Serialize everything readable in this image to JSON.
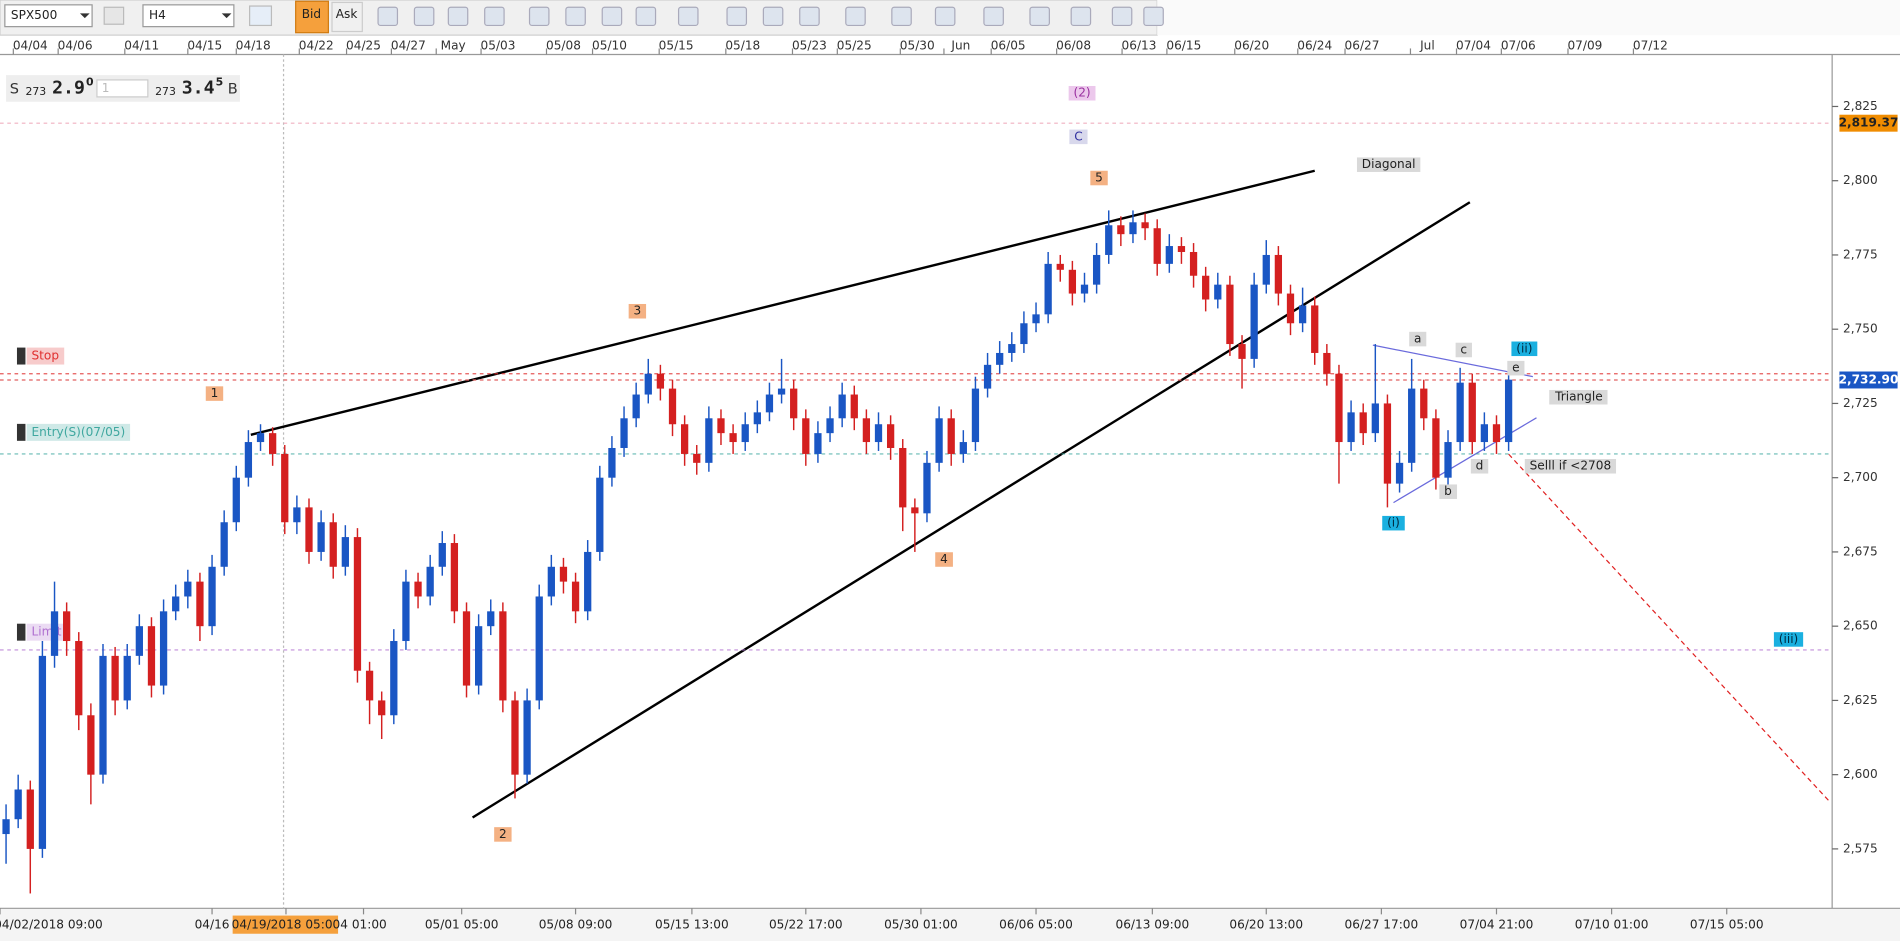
{
  "toolbar": {
    "symbol": "SPX500",
    "timeframe": "H4",
    "bid": "Bid",
    "ask": "Ask"
  },
  "quote": {
    "side_s": "S",
    "bid_big": "273",
    "bid_main": "2.9",
    "bid_sup": "0",
    "amount": "1",
    "ask_big": "273",
    "ask_main": "3.4",
    "ask_sup": "5",
    "side_b": "B"
  },
  "chart_data": {
    "type": "candlestick",
    "up_color": "#1a56c4",
    "down_color": "#d42020",
    "ylim": [
      2555,
      2842.5
    ],
    "yticks": [
      {
        "value": 2575,
        "label": "2,575"
      },
      {
        "value": 2600,
        "label": "2,600"
      },
      {
        "value": 2625,
        "label": "2,625"
      },
      {
        "value": 2650,
        "label": "2,650"
      },
      {
        "value": 2675,
        "label": "2,675"
      },
      {
        "value": 2700,
        "label": "2,700"
      },
      {
        "value": 2725,
        "label": "2,725"
      },
      {
        "value": 2750,
        "label": "2,750"
      },
      {
        "value": 2775,
        "label": "2,775"
      },
      {
        "value": 2800,
        "label": "2,800"
      },
      {
        "value": 2825,
        "label": "2,825"
      }
    ],
    "top_dates": [
      "04/04",
      "04/06",
      "04/11",
      "04/15",
      "04/18",
      "04/22",
      "04/25",
      "04/27",
      "May",
      "05/03",
      "05/08",
      "05/10",
      "05/15",
      "05/18",
      "05/23",
      "05/25",
      "05/30",
      "Jun",
      "06/05",
      "06/08",
      "06/13",
      "06/15",
      "06/20",
      "06/24",
      "06/27",
      "Jul",
      "07/04",
      "07/06",
      "07/09",
      "07/12"
    ],
    "bottom_dates": [
      "04/02/2018 09:00",
      "04/16",
      "04/19/2018 05:00",
      "4 01:00",
      "05/01 05:00",
      "05/08 09:00",
      "05/15 13:00",
      "05/22 17:00",
      "05/30 01:00",
      "06/06 05:00",
      "06/13 09:00",
      "06/20 13:00",
      "06/27 17:00",
      "07/04 21:00",
      "07/10 01:00",
      "07/15 05:00"
    ],
    "price_tags": [
      {
        "value": 2819.37,
        "label": "2,819.37",
        "color": "#f08c00"
      },
      {
        "value": 2732.9,
        "label": "2,732.90",
        "color": "#1a56c4"
      }
    ],
    "orders": [
      {
        "label": "Stop",
        "value": 2735,
        "color": "#e03030"
      },
      {
        "label": "Entry(S)(07/05)",
        "value": 2708,
        "color": "#40a8a0"
      },
      {
        "label": "Limit",
        "value": 2642,
        "color": "#b070d0"
      }
    ],
    "annotations": [
      "(2)",
      "C",
      "5",
      "Diagonal",
      "3",
      "1",
      "4",
      "2",
      "a",
      "c",
      "(ii)",
      "e",
      "Triangle",
      "d",
      "b",
      "Selll if <2708",
      "(i)",
      "(iii)"
    ],
    "candles": [
      [
        2580,
        2590,
        2570,
        2585
      ],
      [
        2585,
        2600,
        2582,
        2595
      ],
      [
        2595,
        2598,
        2560,
        2575
      ],
      [
        2575,
        2645,
        2572,
        2640
      ],
      [
        2640,
        2665,
        2636,
        2655
      ],
      [
        2655,
        2658,
        2640,
        2645
      ],
      [
        2645,
        2648,
        2615,
        2620
      ],
      [
        2620,
        2624,
        2590,
        2600
      ],
      [
        2600,
        2644,
        2597,
        2640
      ],
      [
        2640,
        2643,
        2620,
        2625
      ],
      [
        2625,
        2644,
        2622,
        2640
      ],
      [
        2640,
        2654,
        2637,
        2650
      ],
      [
        2650,
        2653,
        2626,
        2630
      ],
      [
        2630,
        2659,
        2627,
        2655
      ],
      [
        2655,
        2664,
        2652,
        2660
      ],
      [
        2660,
        2669,
        2656,
        2665
      ],
      [
        2665,
        2668,
        2645,
        2650
      ],
      [
        2650,
        2674,
        2647,
        2670
      ],
      [
        2670,
        2689,
        2667,
        2685
      ],
      [
        2685,
        2704,
        2682,
        2700
      ],
      [
        2700,
        2716,
        2697,
        2712
      ],
      [
        2712,
        2718,
        2709,
        2715
      ],
      [
        2715,
        2717,
        2704,
        2708
      ],
      [
        2708,
        2711,
        2681,
        2685
      ],
      [
        2685,
        2694,
        2681,
        2690
      ],
      [
        2690,
        2693,
        2671,
        2675
      ],
      [
        2675,
        2689,
        2672,
        2685
      ],
      [
        2685,
        2688,
        2666,
        2670
      ],
      [
        2670,
        2684,
        2667,
        2680
      ],
      [
        2680,
        2683,
        2631,
        2635
      ],
      [
        2635,
        2638,
        2617,
        2625
      ],
      [
        2625,
        2628,
        2612,
        2620
      ],
      [
        2620,
        2649,
        2617,
        2645
      ],
      [
        2645,
        2669,
        2642,
        2665
      ],
      [
        2665,
        2668,
        2656,
        2660
      ],
      [
        2660,
        2674,
        2657,
        2670
      ],
      [
        2670,
        2682,
        2667,
        2678
      ],
      [
        2678,
        2681,
        2651,
        2655
      ],
      [
        2655,
        2658,
        2626,
        2630
      ],
      [
        2630,
        2654,
        2627,
        2650
      ],
      [
        2650,
        2659,
        2647,
        2655
      ],
      [
        2655,
        2658,
        2621,
        2625
      ],
      [
        2625,
        2628,
        2592,
        2600
      ],
      [
        2600,
        2629,
        2597,
        2625
      ],
      [
        2625,
        2664,
        2622,
        2660
      ],
      [
        2660,
        2674,
        2657,
        2670
      ],
      [
        2670,
        2673,
        2661,
        2665
      ],
      [
        2665,
        2668,
        2651,
        2655
      ],
      [
        2655,
        2679,
        2652,
        2675
      ],
      [
        2675,
        2704,
        2672,
        2700
      ],
      [
        2700,
        2714,
        2697,
        2710
      ],
      [
        2710,
        2724,
        2707,
        2720
      ],
      [
        2720,
        2732,
        2717,
        2728
      ],
      [
        2728,
        2740,
        2725,
        2735
      ],
      [
        2735,
        2738,
        2726,
        2730
      ],
      [
        2730,
        2733,
        2714,
        2718
      ],
      [
        2718,
        2721,
        2704,
        2708
      ],
      [
        2708,
        2711,
        2701,
        2705
      ],
      [
        2705,
        2724,
        2702,
        2720
      ],
      [
        2720,
        2723,
        2711,
        2715
      ],
      [
        2715,
        2718,
        2708,
        2712
      ],
      [
        2712,
        2722,
        2709,
        2718
      ],
      [
        2718,
        2726,
        2715,
        2722
      ],
      [
        2722,
        2732,
        2719,
        2728
      ],
      [
        2728,
        2740,
        2725,
        2730
      ],
      [
        2730,
        2733,
        2716,
        2720
      ],
      [
        2720,
        2723,
        2704,
        2708
      ],
      [
        2708,
        2719,
        2705,
        2715
      ],
      [
        2715,
        2724,
        2712,
        2720
      ],
      [
        2720,
        2732,
        2717,
        2728
      ],
      [
        2728,
        2731,
        2716,
        2720
      ],
      [
        2720,
        2723,
        2708,
        2712
      ],
      [
        2712,
        2722,
        2709,
        2718
      ],
      [
        2718,
        2721,
        2706,
        2710
      ],
      [
        2710,
        2713,
        2682,
        2690
      ],
      [
        2690,
        2693,
        2675,
        2688
      ],
      [
        2688,
        2709,
        2685,
        2705
      ],
      [
        2705,
        2724,
        2702,
        2720
      ],
      [
        2720,
        2723,
        2704,
        2708
      ],
      [
        2708,
        2716,
        2705,
        2712
      ],
      [
        2712,
        2734,
        2709,
        2730
      ],
      [
        2730,
        2742,
        2727,
        2738
      ],
      [
        2738,
        2746,
        2735,
        2742
      ],
      [
        2742,
        2749,
        2739,
        2745
      ],
      [
        2745,
        2756,
        2742,
        2752
      ],
      [
        2752,
        2759,
        2749,
        2755
      ],
      [
        2755,
        2776,
        2752,
        2772
      ],
      [
        2772,
        2775,
        2766,
        2770
      ],
      [
        2770,
        2773,
        2758,
        2762
      ],
      [
        2762,
        2769,
        2759,
        2765
      ],
      [
        2765,
        2779,
        2762,
        2775
      ],
      [
        2775,
        2790,
        2772,
        2785
      ],
      [
        2785,
        2788,
        2778,
        2782
      ],
      [
        2782,
        2790,
        2779,
        2786
      ],
      [
        2786,
        2789,
        2780,
        2784
      ],
      [
        2784,
        2787,
        2768,
        2772
      ],
      [
        2772,
        2782,
        2769,
        2778
      ],
      [
        2778,
        2781,
        2772,
        2776
      ],
      [
        2776,
        2779,
        2764,
        2768
      ],
      [
        2768,
        2771,
        2756,
        2760
      ],
      [
        2760,
        2769,
        2757,
        2765
      ],
      [
        2765,
        2768,
        2741,
        2745
      ],
      [
        2745,
        2748,
        2730,
        2740
      ],
      [
        2740,
        2769,
        2737,
        2765
      ],
      [
        2765,
        2780,
        2762,
        2775
      ],
      [
        2775,
        2778,
        2758,
        2762
      ],
      [
        2762,
        2765,
        2748,
        2752
      ],
      [
        2752,
        2764,
        2749,
        2758
      ],
      [
        2758,
        2761,
        2738,
        2742
      ],
      [
        2742,
        2745,
        2731,
        2735
      ],
      [
        2735,
        2738,
        2698,
        2712
      ],
      [
        2712,
        2726,
        2709,
        2722
      ],
      [
        2722,
        2725,
        2711,
        2715
      ],
      [
        2715,
        2745,
        2712,
        2725
      ],
      [
        2725,
        2728,
        2690,
        2698
      ],
      [
        2698,
        2709,
        2695,
        2705
      ],
      [
        2705,
        2740,
        2702,
        2730
      ],
      [
        2730,
        2733,
        2716,
        2720
      ],
      [
        2720,
        2723,
        2696,
        2700
      ],
      [
        2700,
        2716,
        2697,
        2712
      ],
      [
        2712,
        2737,
        2709,
        2732
      ],
      [
        2732,
        2735,
        2708,
        2712
      ],
      [
        2712,
        2722,
        2709,
        2718
      ],
      [
        2718,
        2721,
        2708,
        2712
      ],
      [
        2712,
        2736,
        2709,
        2733
      ]
    ]
  }
}
